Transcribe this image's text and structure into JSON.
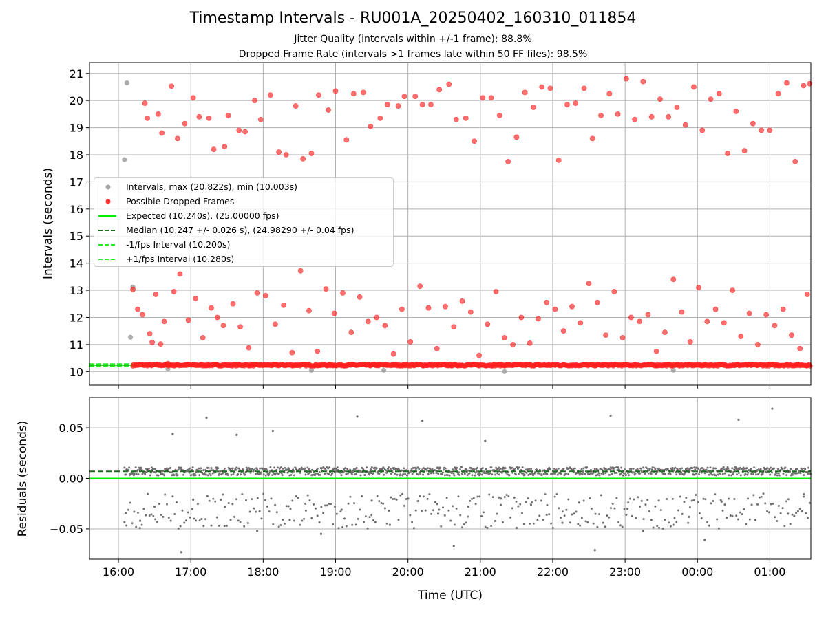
{
  "title": "Timestamp Intervals - RU001A_20250402_160310_011854",
  "subtitle_1": "Jitter Quality (intervals within +/-1 frame): 88.8%",
  "subtitle_2": "Dropped Frame Rate (intervals >1 frames late within 50 FF files): 98.5%",
  "colors": {
    "intervals": "#a0a0a0",
    "dropped": "#ff2020",
    "expected": "#00ee00",
    "median": "#1f6b1f",
    "residuals": "#707070",
    "grid": "#b0b0b0"
  },
  "chart_data": [
    {
      "type": "scatter",
      "ylabel": "Intervals (seconds)",
      "xlabel": "",
      "ylim": [
        9.5,
        21.4
      ],
      "y_ticks": [
        10,
        11,
        12,
        13,
        14,
        15,
        16,
        17,
        18,
        19,
        20,
        21
      ],
      "y_tick_labels": [
        "10",
        "11",
        "12",
        "13",
        "14",
        "15",
        "16",
        "17",
        "18",
        "19",
        "20",
        "21"
      ],
      "xlim": [
        "15:36",
        "01:34"
      ],
      "grid": true,
      "legend_position": "center-left",
      "legend": [
        "Intervals, max (20.822s), min (10.003s)",
        "Possible Dropped Frames",
        "Expected (10.240s), (25.00000 fps)",
        "Median (10.247 +/- 0.026 s), (24.98290 +/- 0.04 fps)",
        "-1/fps Interval (10.200s)",
        "+1/fps Interval (10.280s)"
      ],
      "reference_lines": {
        "expected": 10.24,
        "median": 10.247,
        "minus_1_fps": 10.2,
        "plus_1_fps": 10.28
      },
      "series": [
        {
          "name": "Intervals, max (20.822s), min (10.003s)",
          "x": [
            "16:05",
            "16:07",
            "16:10",
            "16:12",
            "16:41",
            "18:40",
            "19:40",
            "21:20",
            "23:40"
          ],
          "y": [
            17.82,
            20.65,
            11.27,
            13.12,
            10.1,
            10.05,
            10.05,
            10.0,
            10.05
          ]
        },
        {
          "name": "Possible Dropped Frames",
          "x": [
            "16:12",
            "16:16",
            "16:20",
            "16:26",
            "16:28",
            "16:31",
            "16:35",
            "16:38",
            "16:41",
            "16:46",
            "16:51",
            "16:58",
            "17:04",
            "17:10",
            "17:17",
            "17:22",
            "17:27",
            "17:35",
            "17:41",
            "17:48",
            "17:55",
            "18:02",
            "18:10",
            "18:17",
            "18:24",
            "18:31",
            "18:38",
            "18:45",
            "18:52",
            "18:59",
            "19:06",
            "19:13",
            "19:20",
            "19:27",
            "19:34",
            "19:41",
            "19:48",
            "19:55",
            "20:02",
            "20:10",
            "20:17",
            "20:24",
            "20:31",
            "20:38",
            "20:45",
            "20:52",
            "20:59",
            "21:06",
            "21:13",
            "21:20",
            "21:27",
            "21:34",
            "21:41",
            "21:48",
            "21:55",
            "22:02",
            "22:09",
            "22:16",
            "22:23",
            "22:30",
            "22:37",
            "22:44",
            "22:51",
            "22:58",
            "23:05",
            "23:12",
            "23:19",
            "23:26",
            "23:33",
            "23:40",
            "23:47",
            "23:54",
            "00:01",
            "00:08",
            "00:15",
            "00:22",
            "00:29",
            "00:36",
            "00:43",
            "00:50",
            "00:57",
            "01:04",
            "01:11",
            "01:18",
            "01:25",
            "01:31",
            "16:24",
            "16:33",
            "16:44",
            "16:55",
            "17:07",
            "17:19",
            "17:31",
            "17:45",
            "17:58",
            "18:13",
            "18:27",
            "18:40",
            "18:54",
            "19:09",
            "19:23",
            "19:37",
            "19:52",
            "20:06",
            "20:19",
            "20:34",
            "20:48",
            "21:02",
            "21:16",
            "21:30",
            "21:44",
            "21:58",
            "22:12",
            "22:26",
            "22:40",
            "22:54",
            "23:08",
            "23:22",
            "23:36",
            "23:50",
            "00:04",
            "00:18",
            "00:32",
            "00:46",
            "01:00",
            "01:14",
            "01:28",
            "16:22",
            "16:36",
            "16:49",
            "17:02",
            "17:15",
            "17:28",
            "17:40",
            "17:53",
            "18:06",
            "18:19",
            "18:33",
            "18:46",
            "19:00",
            "19:15",
            "19:29",
            "19:43",
            "19:57",
            "20:12",
            "20:26",
            "20:40",
            "20:55",
            "21:09",
            "21:23",
            "21:37",
            "21:51",
            "22:05",
            "22:19",
            "22:33",
            "22:47",
            "23:01",
            "23:15",
            "23:29",
            "23:43",
            "23:57",
            "00:11",
            "00:25",
            "00:39",
            "00:53",
            "01:07",
            "01:21",
            "01:33"
          ],
          "y": [
            13.03,
            12.3,
            12.1,
            11.4,
            11.08,
            12.85,
            11.02,
            11.85,
            10.3,
            12.95,
            13.6,
            11.9,
            12.7,
            11.25,
            12.35,
            12.0,
            11.7,
            12.5,
            11.65,
            10.88,
            12.9,
            12.8,
            11.75,
            12.45,
            10.7,
            13.72,
            12.25,
            10.75,
            13.05,
            12.15,
            12.9,
            11.45,
            12.75,
            11.85,
            12.0,
            11.7,
            10.65,
            12.3,
            11.1,
            13.15,
            12.35,
            10.85,
            12.4,
            11.65,
            12.6,
            12.2,
            10.6,
            11.75,
            12.95,
            11.25,
            11.0,
            12.0,
            11.05,
            11.95,
            12.55,
            12.3,
            11.5,
            12.4,
            11.8,
            13.25,
            12.55,
            11.35,
            12.95,
            11.25,
            12.0,
            11.85,
            12.1,
            10.75,
            11.45,
            13.4,
            12.2,
            11.1,
            13.1,
            11.85,
            12.3,
            11.8,
            13.0,
            11.3,
            12.15,
            11.0,
            12.1,
            11.7,
            12.3,
            11.35,
            10.85,
            12.85,
            19.35,
            19.5,
            20.53,
            19.15,
            19.4,
            18.2,
            19.45,
            18.85,
            19.3,
            18.1,
            19.8,
            18.05,
            19.65,
            18.55,
            20.3,
            19.35,
            19.8,
            20.15,
            19.85,
            20.6,
            19.35,
            20.1,
            19.45,
            18.65,
            19.75,
            20.45,
            19.85,
            20.45,
            19.45,
            19.5,
            19.3,
            19.4,
            19.4,
            19.1,
            18.9,
            20.25,
            19.6,
            19.15,
            18.9,
            20.65,
            20.55,
            19.9,
            18.8,
            18.6,
            20.1,
            19.35,
            18.3,
            18.9,
            20.0,
            20.2,
            18.0,
            17.85,
            20.2,
            20.35,
            20.25,
            19.05,
            19.85,
            20.15,
            19.85,
            20.4,
            19.3,
            18.5,
            20.1,
            17.75,
            20.3,
            20.5,
            17.8,
            19.9,
            18.6,
            20.25,
            20.8,
            20.7,
            20.05,
            19.75,
            20.5,
            20.05,
            18.05,
            18.15,
            18.9,
            20.25,
            17.75,
            20.62
          ]
        },
        {
          "name": "Possible Dropped Frames (dense band)",
          "x": [
            "16:12",
            "01:34"
          ],
          "y": [
            10.24,
            10.24
          ]
        }
      ]
    },
    {
      "type": "scatter",
      "xlabel": "Time (UTC)",
      "ylabel": "Residuals (seconds)",
      "ylim": [
        -0.08,
        0.08
      ],
      "y_ticks": [
        0.05,
        0.0,
        -0.05
      ],
      "y_tick_labels": [
        "0.05",
        "0.00",
        "−0.05"
      ],
      "xlim": [
        "15:36",
        "01:34"
      ],
      "x_ticks": [
        "16:00",
        "17:00",
        "18:00",
        "19:00",
        "20:00",
        "21:00",
        "22:00",
        "23:00",
        "00:00",
        "01:00"
      ],
      "x_tick_labels": [
        "16:00",
        "17:00",
        "18:00",
        "19:00",
        "20:00",
        "21:00",
        "22:00",
        "23:00",
        "00:00",
        "01:00"
      ],
      "grid": true,
      "reference_lines": {
        "zero": 0.0,
        "median_offset": 0.007
      },
      "series": [
        {
          "name": "Residuals (outliers)",
          "x": [
            "16:06",
            "16:18",
            "16:30",
            "16:45",
            "16:52",
            "17:02",
            "17:13",
            "17:28",
            "17:38",
            "17:55",
            "18:08",
            "18:22",
            "18:35",
            "18:48",
            "19:05",
            "19:18",
            "19:30",
            "19:45",
            "20:00",
            "20:12",
            "20:25",
            "20:38",
            "20:50",
            "21:04",
            "21:17",
            "21:30",
            "21:42",
            "21:55",
            "22:08",
            "22:22",
            "22:35",
            "22:48",
            "23:02",
            "23:15",
            "23:28",
            "23:40",
            "23:53",
            "00:06",
            "00:20",
            "00:34",
            "00:48",
            "01:02",
            "01:15",
            "01:28"
          ],
          "y": [
            -0.034,
            -0.042,
            -0.028,
            0.044,
            -0.073,
            -0.021,
            0.06,
            -0.047,
            0.043,
            -0.052,
            0.047,
            -0.041,
            -0.025,
            -0.055,
            -0.031,
            0.061,
            -0.022,
            -0.046,
            -0.02,
            0.057,
            -0.035,
            -0.067,
            -0.028,
            0.037,
            -0.02,
            -0.049,
            -0.026,
            -0.036,
            -0.044,
            -0.024,
            -0.071,
            0.062,
            -0.03,
            -0.052,
            -0.022,
            -0.046,
            -0.038,
            -0.061,
            -0.023,
            0.058,
            -0.041,
            0.069,
            -0.035,
            -0.018
          ]
        }
      ]
    }
  ]
}
